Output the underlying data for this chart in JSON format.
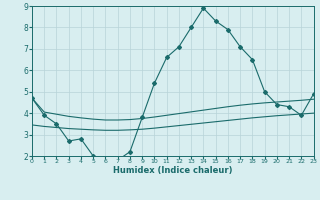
{
  "x": [
    0,
    1,
    2,
    3,
    4,
    5,
    6,
    7,
    8,
    9,
    10,
    11,
    12,
    13,
    14,
    15,
    16,
    17,
    18,
    19,
    20,
    21,
    22,
    23
  ],
  "y_main": [
    4.7,
    3.9,
    3.5,
    2.7,
    2.8,
    2.0,
    1.7,
    1.8,
    2.2,
    3.8,
    5.4,
    6.6,
    7.1,
    8.0,
    8.9,
    8.3,
    7.9,
    7.1,
    6.5,
    5.0,
    4.4,
    4.3,
    3.9,
    4.9
  ],
  "y_upper": [
    4.7,
    4.05,
    3.95,
    3.85,
    3.78,
    3.72,
    3.68,
    3.68,
    3.7,
    3.75,
    3.82,
    3.9,
    3.98,
    4.06,
    4.14,
    4.22,
    4.3,
    4.37,
    4.43,
    4.48,
    4.52,
    4.56,
    4.6,
    4.65
  ],
  "y_lower": [
    3.45,
    3.38,
    3.33,
    3.28,
    3.25,
    3.22,
    3.2,
    3.2,
    3.22,
    3.25,
    3.3,
    3.36,
    3.42,
    3.48,
    3.54,
    3.6,
    3.66,
    3.72,
    3.78,
    3.83,
    3.88,
    3.92,
    3.96,
    4.0
  ],
  "line_color": "#1a6b6b",
  "bg_color": "#d8eef0",
  "grid_color": "#b8d4d8",
  "xlabel": "Humidex (Indice chaleur)",
  "xlim": [
    0,
    23
  ],
  "ylim": [
    2,
    9
  ],
  "yticks": [
    2,
    3,
    4,
    5,
    6,
    7,
    8,
    9
  ],
  "xticks": [
    0,
    1,
    2,
    3,
    4,
    5,
    6,
    7,
    8,
    9,
    10,
    11,
    12,
    13,
    14,
    15,
    16,
    17,
    18,
    19,
    20,
    21,
    22,
    23
  ]
}
